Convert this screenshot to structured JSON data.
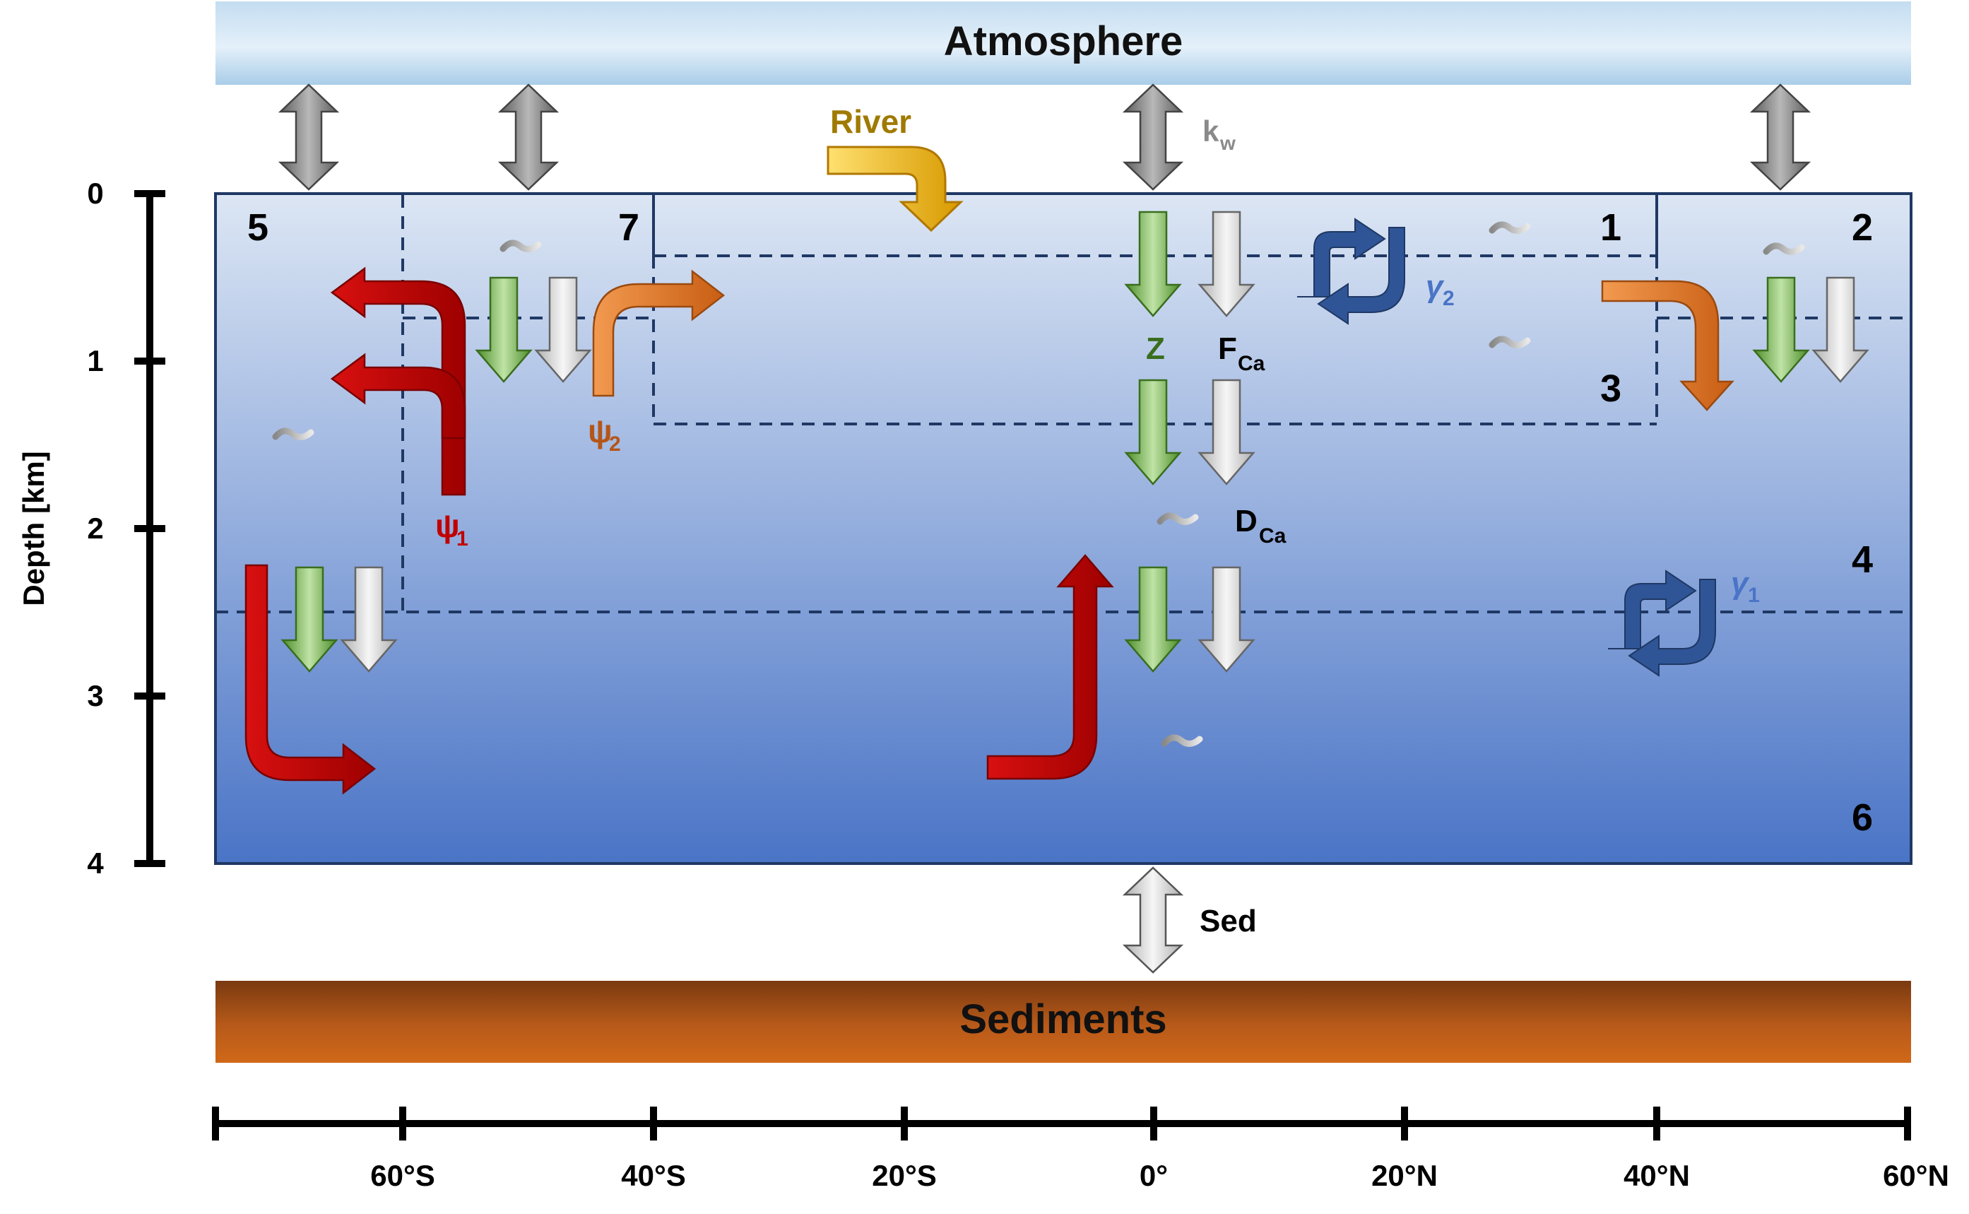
{
  "labels": {
    "atmosphere": "Atmosphere",
    "sediments": "Sediments",
    "depth_axis": "Depth [km]",
    "river": "River",
    "kw_main": "k",
    "kw_sub": "w",
    "sed": "Sed",
    "z": "Z",
    "fca_main": "F",
    "fca_sub": "Ca",
    "dca_main": "D",
    "dca_sub": "Ca",
    "psi1_main": "ψ",
    "psi1_sub": "1",
    "psi2_main": "ψ",
    "psi2_sub": "2",
    "gamma1_main": "γ",
    "gamma1_sub": "1",
    "gamma2_main": "γ",
    "gamma2_sub": "2"
  },
  "boxes": [
    "1",
    "2",
    "3",
    "4",
    "5",
    "6",
    "7"
  ],
  "depth_ticks": [
    "0",
    "1",
    "2",
    "3",
    "4"
  ],
  "lat_ticks": [
    "60°S",
    "40°S",
    "20°S",
    "0°",
    "20°N",
    "40°N",
    "60°N"
  ],
  "colors": {
    "ocean_top": "#dce6f4",
    "ocean_bottom": "#4a74c6",
    "circulation_psi1": "#c00000",
    "circulation_psi2": "#e07020",
    "mixing_gamma": "#2f5597",
    "organic_flux": "#5a9a32",
    "carbonate_flux": "#bfbfbf",
    "river": "#e0a800",
    "exchange": "#808080",
    "sediments": "#a4501a"
  }
}
